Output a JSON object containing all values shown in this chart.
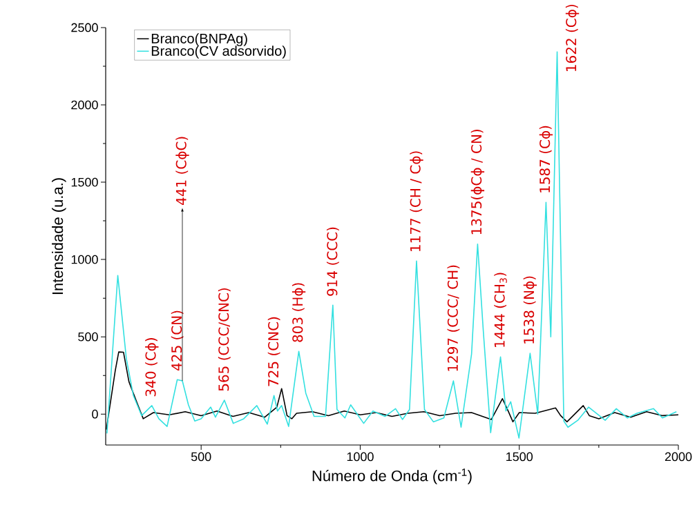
{
  "chart_data": {
    "type": "line",
    "xlabel": "Número de Onda (cm$^{-1}$)",
    "ylabel": "Intensidade (u.a.)",
    "xlim": [
      200,
      2000
    ],
    "ylim": [
      -200,
      2500
    ],
    "xticks": [
      500,
      1000,
      1500,
      2000
    ],
    "yticks": [
      0,
      500,
      1000,
      1500,
      2000,
      2500
    ],
    "legend": "top left",
    "grid": false,
    "series": [
      {
        "name": "Branco(BNPAg)",
        "color": "#000000",
        "x": [
          202,
          230,
          241,
          256,
          273,
          298,
          318,
          350,
          400,
          450,
          500,
          550,
          600,
          650,
          700,
          738,
          753,
          770,
          785,
          800,
          850,
          900,
          950,
          1000,
          1050,
          1100,
          1150,
          1200,
          1250,
          1300,
          1350,
          1412,
          1447,
          1465,
          1480,
          1500,
          1550,
          1614,
          1630,
          1650,
          1701,
          1720,
          1750,
          1800,
          1850,
          1900,
          1950,
          2000
        ],
        "values": [
          -100,
          280,
          402,
          400,
          210,
          75,
          -30,
          10,
          -5,
          15,
          -10,
          20,
          -15,
          10,
          -20,
          45,
          165,
          -10,
          -30,
          5,
          15,
          -10,
          20,
          -5,
          10,
          -15,
          5,
          15,
          -10,
          5,
          10,
          -35,
          100,
          20,
          -50,
          10,
          5,
          40,
          -10,
          -50,
          55,
          -10,
          -30,
          10,
          -20,
          15,
          -10,
          -5
        ]
      },
      {
        "name": "Branco(CV adsorvido)",
        "color": "#33e0e0",
        "x": [
          204,
          238,
          265,
          287,
          313,
          345,
          367,
          393,
          425,
          441,
          460,
          480,
          500,
          530,
          545,
          573,
          601,
          634,
          675,
          708,
          729,
          740,
          753,
          775,
          807,
          829,
          855,
          891,
          914,
          927,
          952,
          970,
          1011,
          1040,
          1078,
          1111,
          1133,
          1155,
          1177,
          1202,
          1230,
          1263,
          1293,
          1317,
          1350,
          1369,
          1387,
          1410,
          1441,
          1458,
          1473,
          1499,
          1534,
          1558,
          1584,
          1599,
          1619,
          1640,
          1653,
          1684,
          1718,
          1770,
          1805,
          1840,
          1870,
          1922,
          1950,
          1994
        ],
        "values": [
          -125,
          897,
          357,
          120,
          -10,
          55,
          -30,
          -80,
          223,
          215,
          60,
          -45,
          -30,
          45,
          -20,
          90,
          -60,
          -30,
          55,
          -65,
          120,
          20,
          55,
          -80,
          406,
          135,
          -15,
          -15,
          705,
          30,
          -25,
          60,
          -60,
          20,
          -15,
          35,
          -35,
          30,
          990,
          30,
          -50,
          -25,
          215,
          -85,
          388,
          1100,
          535,
          -120,
          370,
          20,
          80,
          -155,
          393,
          0,
          1370,
          500,
          2343,
          -45,
          -85,
          -40,
          45,
          -40,
          35,
          -25,
          5,
          35,
          -25,
          15
        ]
      }
    ],
    "annotations": [
      {
        "text": "340 (Cϕ)",
        "x": 345,
        "y": 55
      },
      {
        "text": "425 (CN)",
        "x": 425,
        "y": 223
      },
      {
        "text": "441 (CϕC)",
        "x": 441,
        "y": 215
      },
      {
        "text": "565 (CCC/CNC)",
        "x": 573,
        "y": 90
      },
      {
        "text": "725 (CNC)",
        "x": 729,
        "y": 120
      },
      {
        "text": "803 (Hϕ)",
        "x": 807,
        "y": 406
      },
      {
        "text": "914 (CCC)",
        "x": 914,
        "y": 705
      },
      {
        "text": "1177 (CH / Cϕ)",
        "x": 1177,
        "y": 990
      },
      {
        "text": "1297 (CCC/ CH)",
        "x": 1293,
        "y": 215
      },
      {
        "text": "1375(ϕCϕ / CN)",
        "x": 1369,
        "y": 1100
      },
      {
        "text": "1444 (CH$_{3}$)",
        "x": 1441,
        "y": 370
      },
      {
        "text": "1538 (Nϕ)",
        "x": 1534,
        "y": 393
      },
      {
        "text": "1587 (Cϕ)",
        "x": 1584,
        "y": 1370
      },
      {
        "text": "1622 (Cϕ)",
        "x": 1619,
        "y": 2343
      }
    ]
  }
}
